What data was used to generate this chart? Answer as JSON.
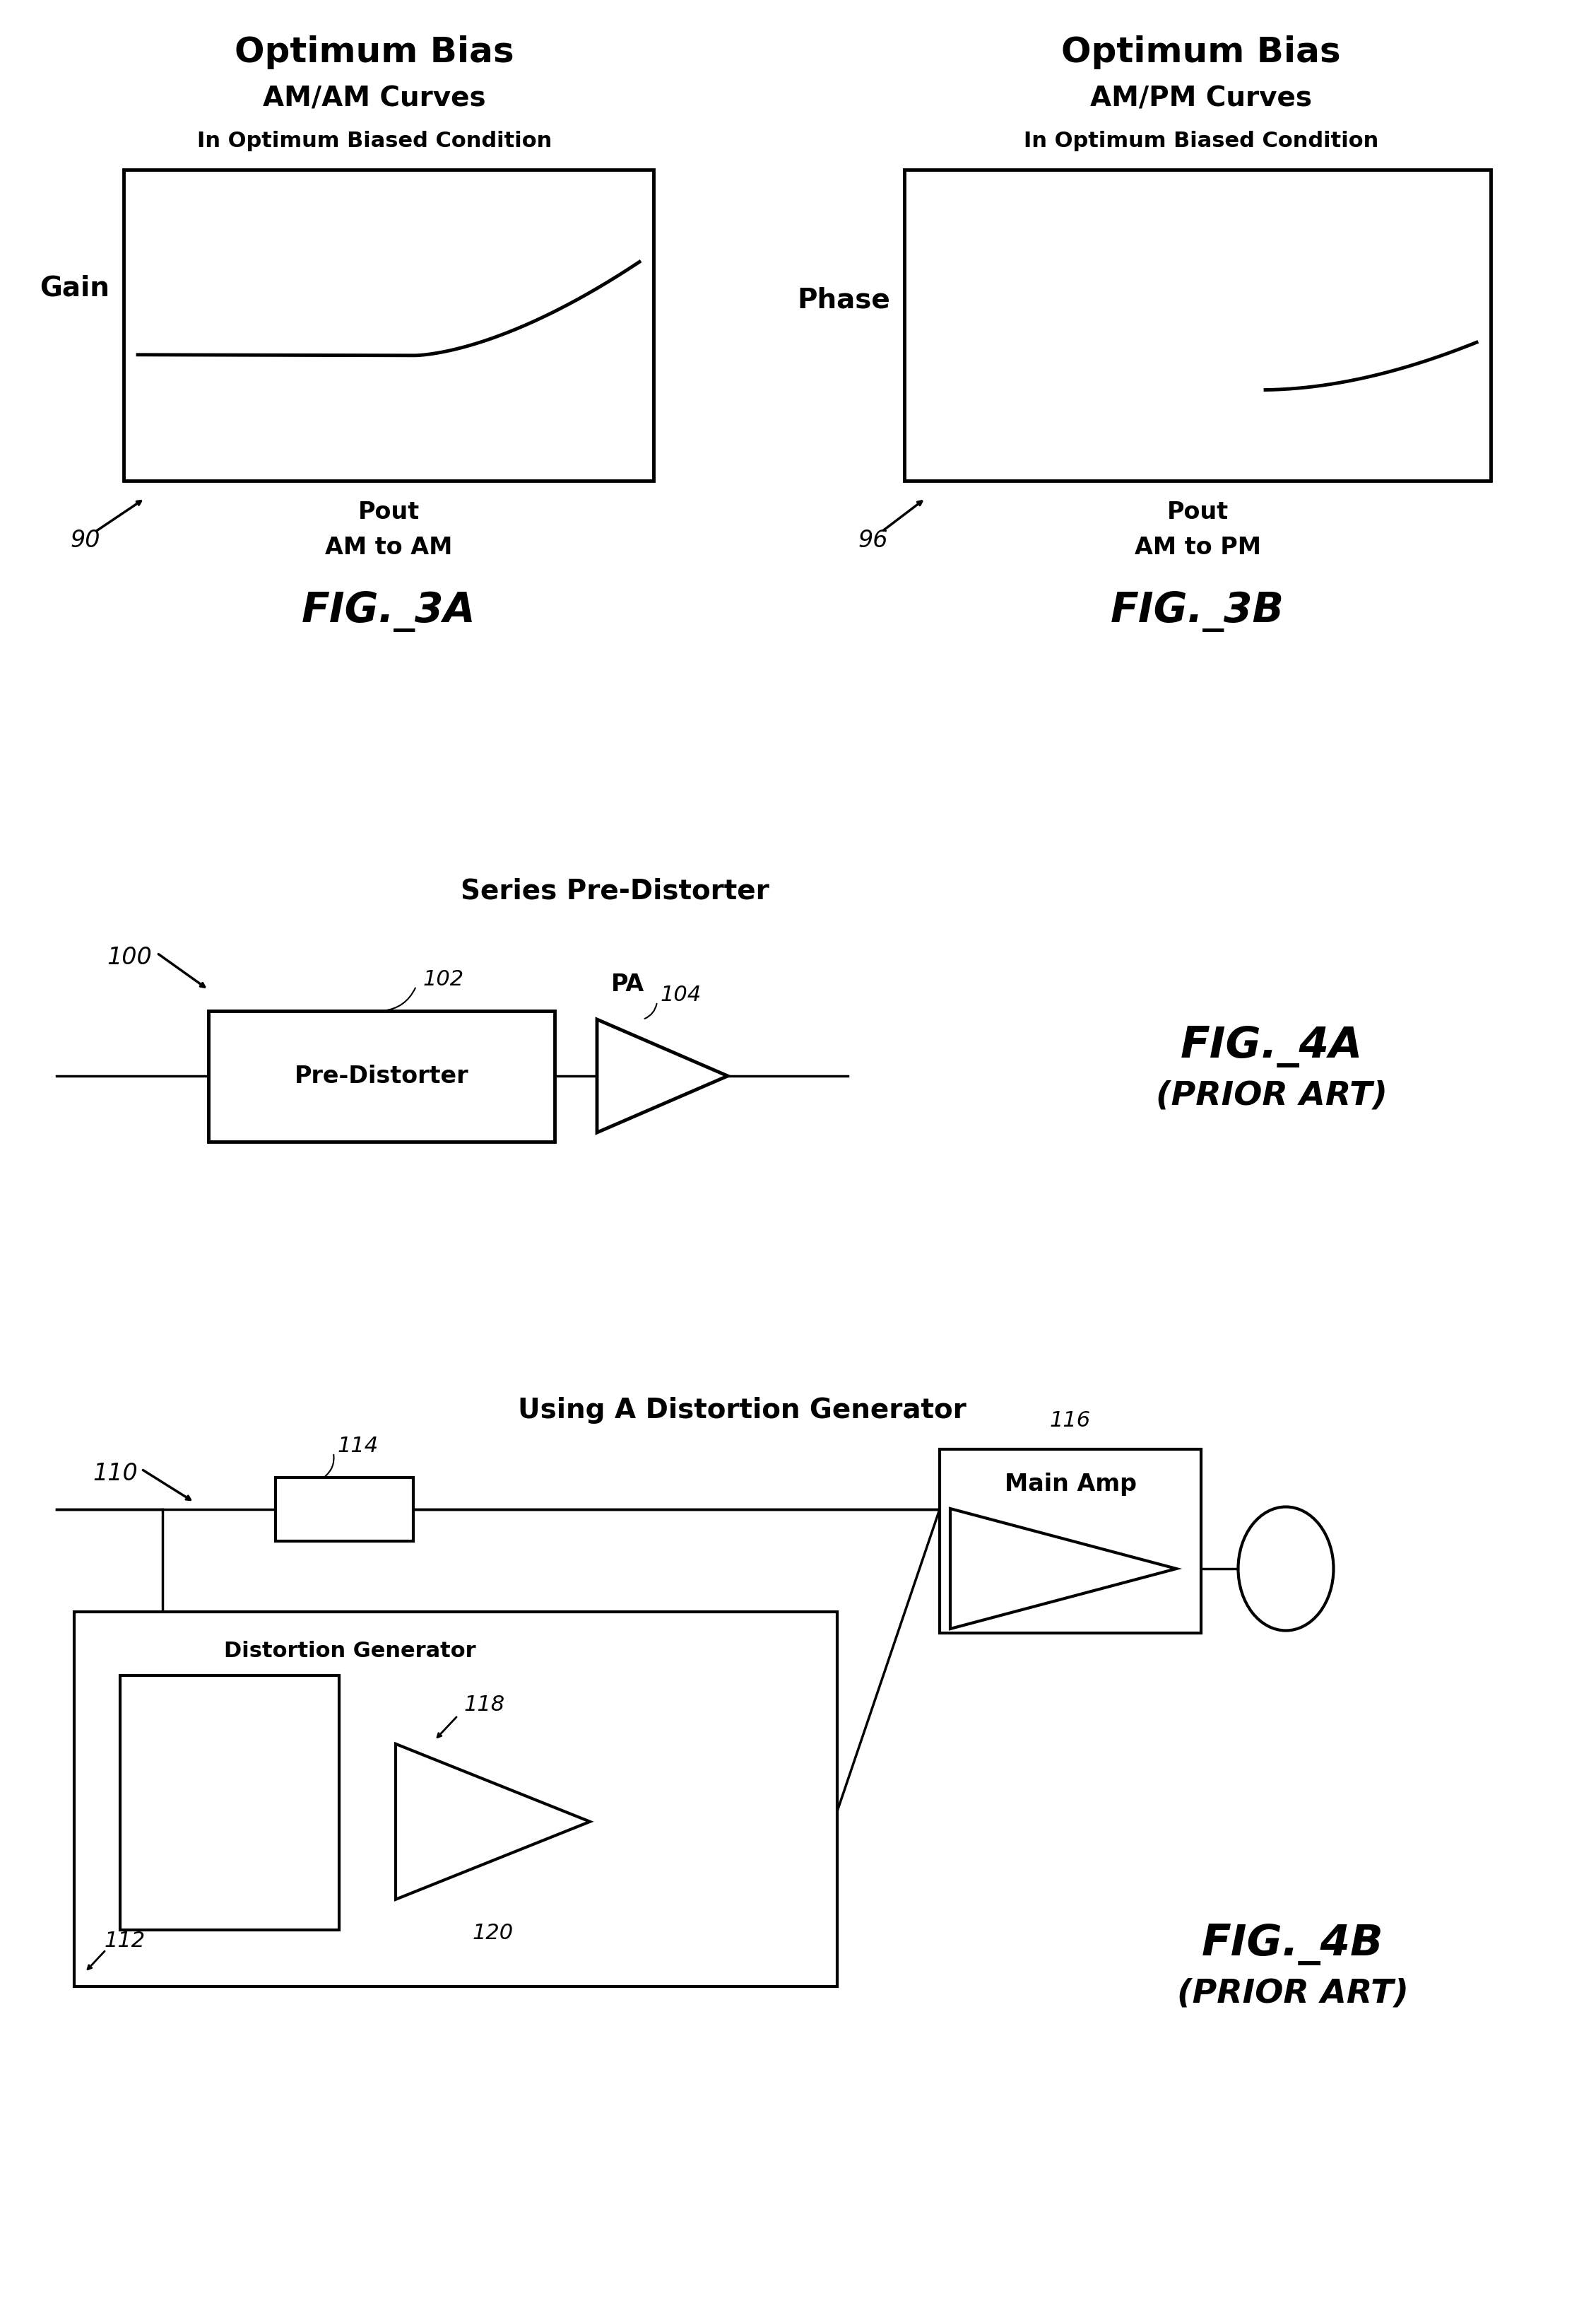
{
  "bg_color": "#ffffff",
  "fig3a_title1": "Optimum Bias",
  "fig3a_title2": "AM/AM Curves",
  "fig3a_title3": "In Optimum Biased Condition",
  "fig3a_xlabel": "Pout",
  "fig3a_xlabel2": "AM to AM",
  "fig3a_ylabel": "Gain",
  "fig3a_label": "FIG._3A",
  "fig3a_num": "90",
  "fig3b_title1": "Optimum Bias",
  "fig3b_title2": "AM/PM Curves",
  "fig3b_title3": "In Optimum Biased Condition",
  "fig3b_xlabel": "Pout",
  "fig3b_xlabel2": "AM to PM",
  "fig3b_ylabel": "Phase",
  "fig3b_label": "FIG._3B",
  "fig3b_num": "96",
  "fig4a_title": "Series Pre-Distorter",
  "fig4a_label": "FIG._4A",
  "fig4a_sublabel": "(PRIOR ART)",
  "fig4a_num": "100",
  "fig4a_box_label": "Pre-Distorter",
  "fig4a_box_num": "102",
  "fig4a_amp_num": "104",
  "fig4a_amp_label": "PA",
  "fig4b_title": "Using A Distortion Generator",
  "fig4b_label": "FIG._4B",
  "fig4b_sublabel": "(PRIOR ART)",
  "fig4b_num": "110",
  "fig4b_box1_num": "112",
  "fig4b_dg_label": "Distortion Generator",
  "fig4b_box2_num": "118",
  "fig4b_amp_num": "120",
  "fig4b_mainamp_label": "Main Amp",
  "fig4b_mainamp_num": "116",
  "fig4b_delay_num": "114"
}
